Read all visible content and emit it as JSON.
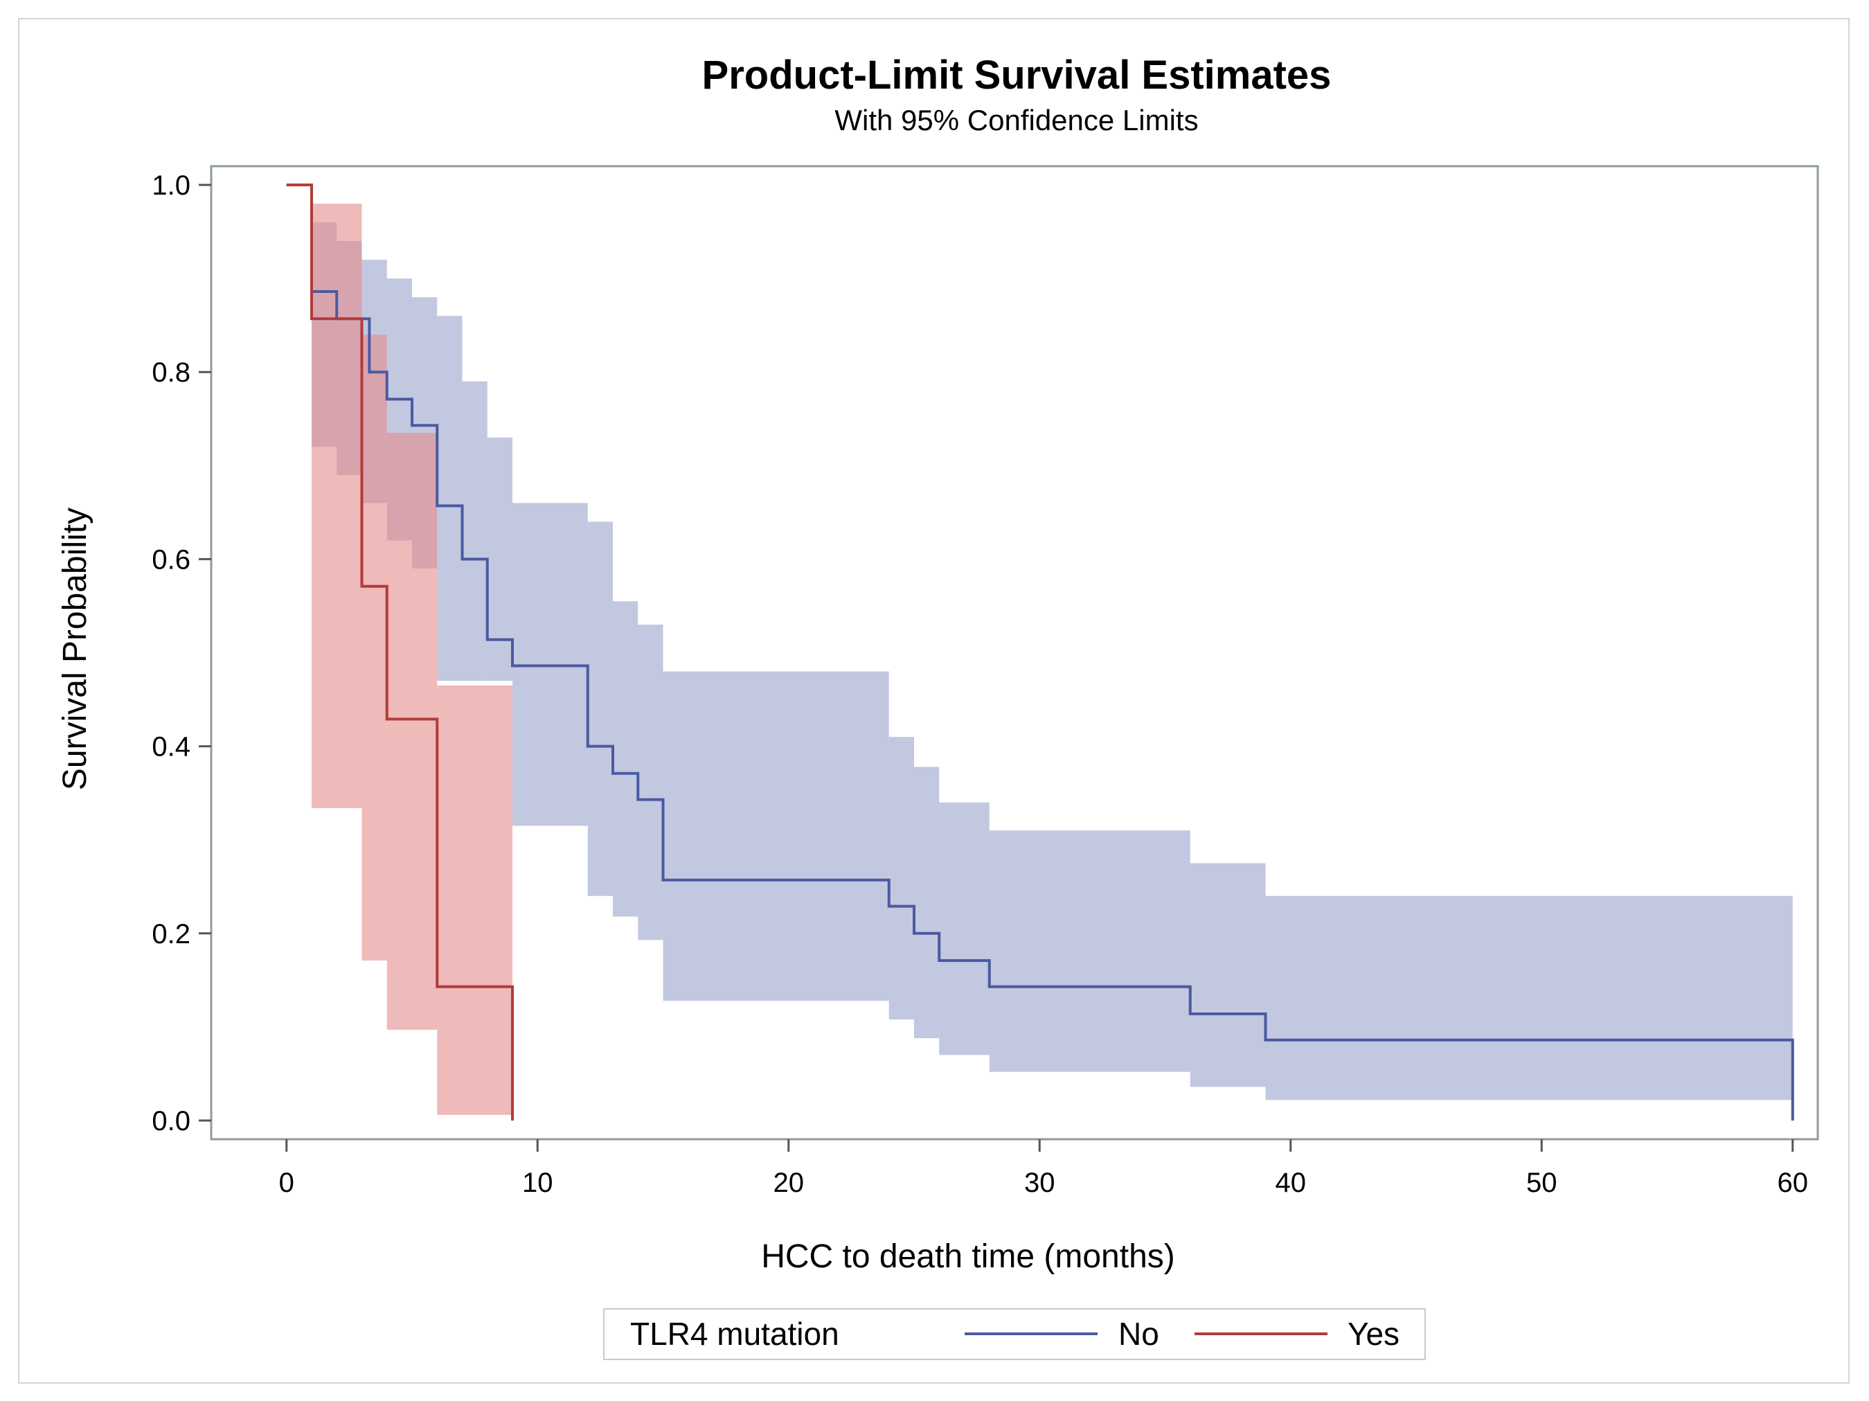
{
  "chart_data": {
    "type": "line",
    "subtype": "kaplan-meier step with confidence bands",
    "title": "Product-Limit Survival Estimates",
    "subtitle": "With 95% Confidence Limits",
    "xlabel": "HCC to death time (months)",
    "ylabel": "Survival Probability",
    "xlim": [
      -3,
      61
    ],
    "ylim": [
      -0.02,
      1.02
    ],
    "xticks": [
      0,
      10,
      20,
      30,
      40,
      50,
      60
    ],
    "xtick_labels": [
      "0",
      "10",
      "20",
      "30",
      "40",
      "50",
      "60"
    ],
    "yticks": [
      0.0,
      0.2,
      0.4,
      0.6,
      0.8,
      1.0
    ],
    "ytick_labels": [
      "0.0",
      "0.2",
      "0.4",
      "0.6",
      "0.8",
      "1.0"
    ],
    "legend": {
      "title": "TLR4 mutation",
      "position": "bottom"
    },
    "series": [
      {
        "name": "No",
        "color": "#4a5aa0",
        "band_color": "#9aa3cb",
        "curve": [
          [
            0,
            1.0
          ],
          [
            1,
            0.886
          ],
          [
            2,
            0.857
          ],
          [
            3,
            0.857
          ],
          [
            3.3,
            0.8
          ],
          [
            4,
            0.8
          ],
          [
            4,
            0.771
          ],
          [
            5,
            0.743
          ],
          [
            6,
            0.657
          ],
          [
            7,
            0.6
          ],
          [
            8,
            0.514
          ],
          [
            9,
            0.486
          ],
          [
            12,
            0.4
          ],
          [
            13,
            0.371
          ],
          [
            14,
            0.343
          ],
          [
            15,
            0.257
          ],
          [
            24,
            0.229
          ],
          [
            25,
            0.2
          ],
          [
            26,
            0.171
          ],
          [
            28,
            0.143
          ],
          [
            36,
            0.114
          ],
          [
            39,
            0.086
          ],
          [
            60,
            0.0
          ]
        ],
        "lower": [
          [
            1,
            0.72
          ],
          [
            2,
            0.69
          ],
          [
            3,
            0.66
          ],
          [
            4,
            0.62
          ],
          [
            5,
            0.59
          ],
          [
            6,
            0.47
          ],
          [
            9,
            0.315
          ],
          [
            12,
            0.24
          ],
          [
            13,
            0.218
          ],
          [
            14,
            0.193
          ],
          [
            15,
            0.128
          ],
          [
            24,
            0.108
          ],
          [
            25,
            0.088
          ],
          [
            26,
            0.07
          ],
          [
            28,
            0.052
          ],
          [
            36,
            0.036
          ],
          [
            39,
            0.022
          ],
          [
            60,
            0.022
          ]
        ],
        "upper": [
          [
            1,
            0.96
          ],
          [
            2,
            0.94
          ],
          [
            3,
            0.92
          ],
          [
            4,
            0.9
          ],
          [
            5,
            0.88
          ],
          [
            6,
            0.86
          ],
          [
            7,
            0.79
          ],
          [
            8,
            0.73
          ],
          [
            9,
            0.66
          ],
          [
            12,
            0.64
          ],
          [
            13,
            0.555
          ],
          [
            14,
            0.53
          ],
          [
            15,
            0.48
          ],
          [
            24,
            0.41
          ],
          [
            25,
            0.378
          ],
          [
            26,
            0.34
          ],
          [
            28,
            0.31
          ],
          [
            36,
            0.275
          ],
          [
            39,
            0.24
          ],
          [
            60,
            0.205
          ]
        ]
      },
      {
        "name": "Yes",
        "color": "#b33a3a",
        "band_color": "#e48c8c",
        "curve": [
          [
            0,
            1.0
          ],
          [
            1,
            0.857
          ],
          [
            3,
            0.571
          ],
          [
            4,
            0.429
          ],
          [
            6,
            0.143
          ],
          [
            9,
            0.0
          ]
        ],
        "lower": [
          [
            1,
            0.334
          ],
          [
            3,
            0.171
          ],
          [
            4,
            0.097
          ],
          [
            6,
            0.006
          ],
          [
            9,
            0.006
          ]
        ],
        "upper": [
          [
            1,
            0.98
          ],
          [
            3,
            0.84
          ],
          [
            4,
            0.735
          ],
          [
            6,
            0.465
          ],
          [
            9,
            0.465
          ]
        ]
      }
    ]
  }
}
